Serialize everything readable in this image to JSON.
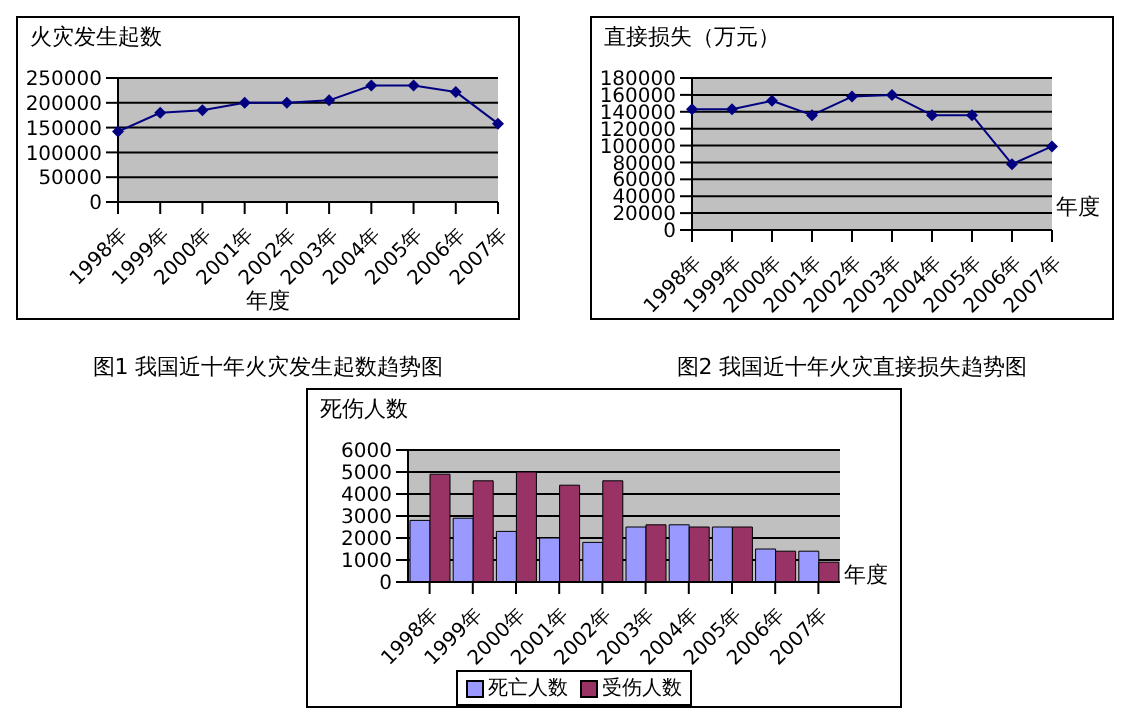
{
  "chart_data": [
    {
      "type": "line",
      "title": "图1  我国近十年火灾发生起数趋势图",
      "ylabel": "火灾发生起数",
      "xlabel": "年度",
      "categories": [
        "1998年",
        "1999年",
        "2000年",
        "2001年",
        "2002年",
        "2003年",
        "2004年",
        "2005年",
        "2006年",
        "2007年"
      ],
      "series": [
        {
          "color": "#000080",
          "values": [
            142000,
            180000,
            185000,
            200000,
            200000,
            205000,
            235000,
            235000,
            222000,
            158000
          ]
        }
      ],
      "ylim": [
        0,
        250000
      ],
      "yticks": [
        0,
        50000,
        100000,
        150000,
        200000,
        250000
      ],
      "grid": "y",
      "legend": false,
      "marker": "diamond",
      "line_style": "solid"
    },
    {
      "type": "line",
      "title": "图2  我国近十年火灾直接损失趋势图",
      "ylabel": "直接损失（万元）",
      "xlabel": "年度",
      "categories": [
        "1998年",
        "1999年",
        "2000年",
        "2001年",
        "2002年",
        "2003年",
        "2004年",
        "2005年",
        "2006年",
        "2007年"
      ],
      "series": [
        {
          "color": "#000080",
          "values": [
            143000,
            143000,
            153000,
            136000,
            158000,
            160000,
            136000,
            136000,
            78000,
            99000
          ]
        }
      ],
      "ylim": [
        0,
        180000
      ],
      "yticks": [
        0,
        20000,
        40000,
        60000,
        80000,
        100000,
        120000,
        140000,
        160000,
        180000
      ],
      "grid": "y",
      "legend": false,
      "marker": "diamond",
      "line_style": "solid"
    },
    {
      "type": "bar",
      "ylabel": "死伤人数",
      "xlabel": "年度",
      "categories": [
        "1998年",
        "1999年",
        "2000年",
        "2001年",
        "2002年",
        "2003年",
        "2004年",
        "2005年",
        "2006年",
        "2007年"
      ],
      "series": [
        {
          "name": "死亡人数",
          "color": "#9999ff",
          "values": [
            2800,
            2900,
            2300,
            2000,
            1800,
            2500,
            2600,
            2500,
            1500,
            1400
          ]
        },
        {
          "name": "受伤人数",
          "color": "#993366",
          "values": [
            4900,
            4600,
            5000,
            4400,
            4600,
            2600,
            2500,
            2500,
            1400,
            900
          ]
        }
      ],
      "ylim": [
        0,
        6000
      ],
      "yticks": [
        0,
        1000,
        2000,
        3000,
        4000,
        5000,
        6000
      ],
      "grid": "y",
      "legend": "bottom"
    }
  ]
}
